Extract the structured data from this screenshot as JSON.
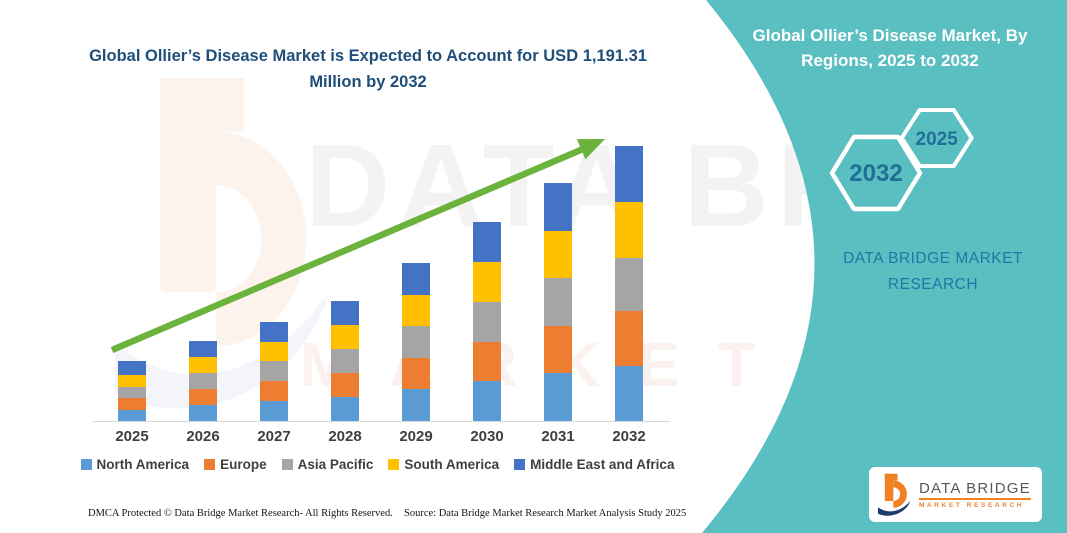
{
  "page_title": "Global Ollier’s Disease Market is Expected to Account for USD 1,191.31 Million by 2032",
  "side_panel": {
    "header": "Global Ollier’s Disease Market, By Regions, 2025 to 2032",
    "hexagons": [
      {
        "label": "2032"
      },
      {
        "label": "2025"
      }
    ],
    "brand_text": "DATA BRIDGE MARKET RESEARCH"
  },
  "logo": {
    "title": "DATA BRIDGE",
    "subtitle": "MARKET RESEARCH"
  },
  "watermark": {
    "line1": "DATA BRIDGE",
    "line2": "MARKET RESEARCH"
  },
  "footer": {
    "left": "DMCA Protected © Data Bridge Market Research-  All Rights Reserved.",
    "right": "Source: Data Bridge Market Research  Market Analysis Study 2025"
  },
  "colors": {
    "teal_panel": "#5ABFC0",
    "title_blue": "#1F4E79",
    "arrow_green": "#6CB33E",
    "hexagon_label": "#1F6F96",
    "brand_text_blue": "#1E78A4",
    "logo_orange": "#F08122",
    "logo_navy": "#1B3D6D"
  },
  "chart_data": {
    "type": "bar",
    "stacked": true,
    "unit": "USD Million",
    "title": "Global Ollier’s Disease Market is Expected to Account for USD 1,191.31 Million by 2032",
    "categories": [
      "2025",
      "2026",
      "2027",
      "2028",
      "2029",
      "2030",
      "2031",
      "2032"
    ],
    "series": [
      {
        "name": "North America",
        "color": "#5B9BD5",
        "values": [
          50,
          69,
          86,
          104,
          137,
          172,
          206,
          238
        ]
      },
      {
        "name": "Europe",
        "color": "#ED7D31",
        "values": [
          49,
          69,
          86,
          104,
          137,
          172,
          206,
          240
        ]
      },
      {
        "name": "Asia Pacific",
        "color": "#A5A5A5",
        "values": [
          47,
          70,
          86,
          104,
          137,
          173,
          206,
          230
        ]
      },
      {
        "name": "South America",
        "color": "#FFC000",
        "values": [
          55,
          69,
          85,
          104,
          136,
          172,
          206,
          243
        ]
      },
      {
        "name": "Middle East and Africa",
        "color": "#4472C4",
        "values": [
          59,
          70,
          86,
          104,
          137,
          173,
          207,
          240.31
        ]
      }
    ],
    "totals_estimated": [
      260,
      347,
      429,
      520,
      684,
      862,
      1031,
      1191.31
    ],
    "highlight_value_2032": "USD 1,191.31 Million",
    "ylim": [
      0,
      1300
    ],
    "gridlines": false,
    "legend_position": "bottom",
    "annotation": "green upward trend arrow from 2025 bar to 2032 bar",
    "estimated": true
  }
}
